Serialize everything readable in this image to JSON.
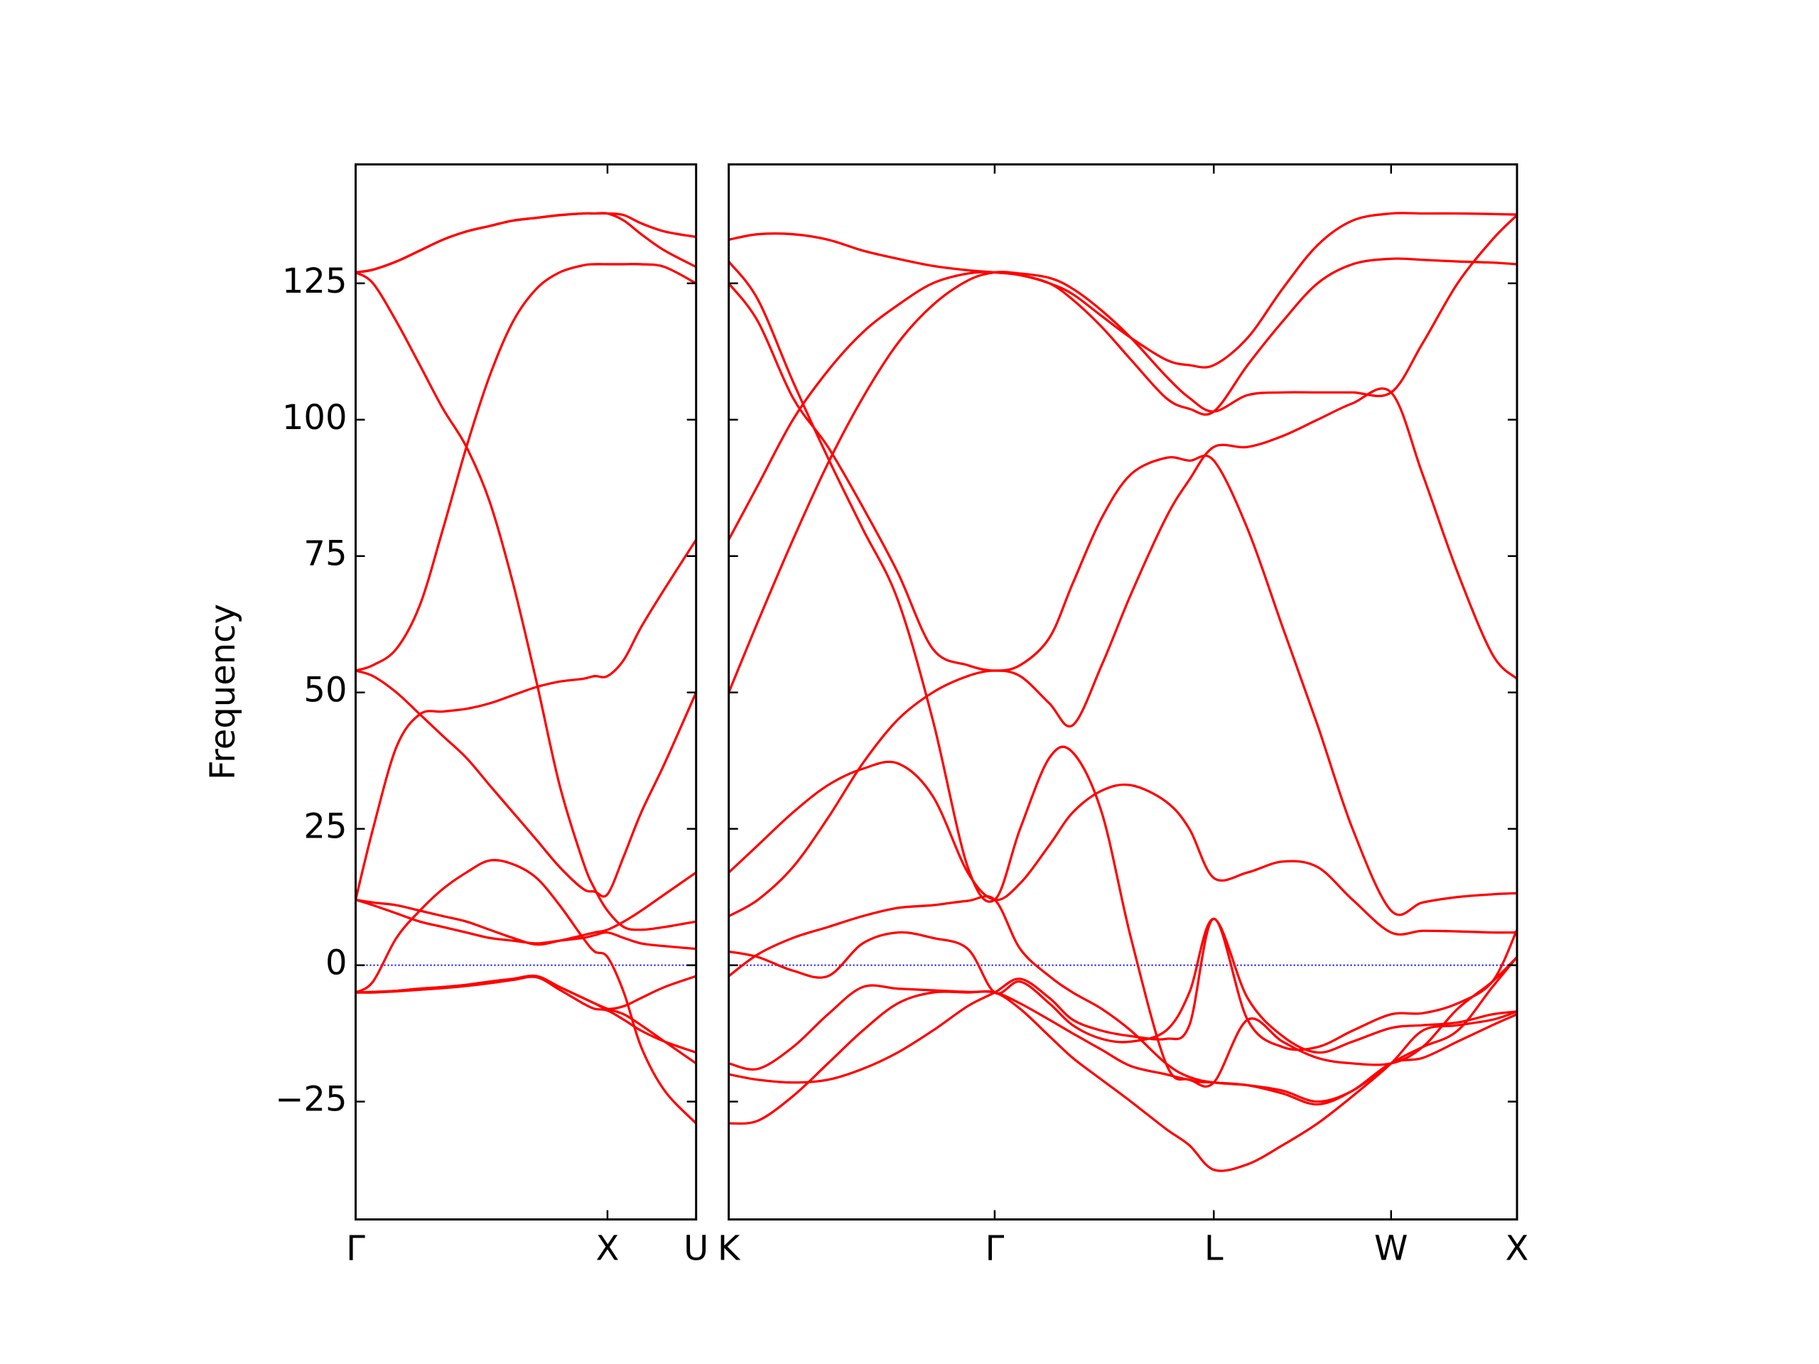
{
  "chart_data": [
    {
      "type": "line",
      "ylabel": "Frequency",
      "color": "#ff0000",
      "hline": {
        "value": 0,
        "color": "#0000ff"
      },
      "xlim": [
        0,
        1.352
      ],
      "xticks": [
        {
          "value": 0,
          "label": "Γ"
        },
        {
          "value": 1,
          "label": "X"
        },
        {
          "value": 1.352,
          "label": "U"
        }
      ],
      "ylim": [
        -46.6,
        146.8
      ],
      "yticks": [
        {
          "value": -25,
          "label": "−25"
        },
        0,
        25,
        50,
        75,
        100,
        125
      ],
      "ytick_labels": true,
      "x": [
        0,
        0.069,
        0.162,
        0.255,
        0.347,
        0.44,
        0.532,
        0.625,
        0.718,
        0.81,
        0.903,
        0.949,
        1.0,
        1.065,
        1.134,
        1.227,
        1.352
      ],
      "series": [
        {
          "values": [
            127,
            127.5,
            129,
            131,
            133,
            134.5,
            135.5,
            136.5,
            137,
            137.5,
            137.8,
            137.8,
            137.8,
            137.5,
            136,
            134.5,
            133.5
          ]
        },
        {
          "values": [
            127,
            127.5,
            129,
            131,
            133,
            134.5,
            135.5,
            136.5,
            137,
            137.5,
            137.8,
            137.8,
            137.8,
            136.5,
            134,
            131,
            128
          ]
        },
        {
          "values": [
            127,
            125,
            118,
            110,
            102,
            95,
            85,
            70,
            52,
            33,
            19,
            14,
            10,
            7,
            6.5,
            7,
            8
          ]
        },
        {
          "values": [
            54,
            55,
            58,
            66,
            80,
            95,
            108,
            118,
            124,
            127,
            128.3,
            128.5,
            128.5,
            128.5,
            128.5,
            128,
            125
          ]
        },
        {
          "values": [
            54,
            53,
            50,
            46,
            42,
            38,
            33,
            28,
            23,
            18,
            14,
            13.5,
            13,
            20,
            28,
            37,
            50
          ]
        },
        {
          "values": [
            12,
            25,
            40,
            46,
            46.5,
            47,
            48,
            49.5,
            51,
            52,
            52.5,
            53,
            53,
            56,
            62,
            69,
            78
          ]
        },
        {
          "values": [
            12,
            11.5,
            11,
            10,
            9,
            8,
            6.5,
            5,
            3.8,
            4.5,
            5.5,
            6,
            6.5,
            8,
            10,
            13,
            17
          ]
        },
        {
          "values": [
            -5,
            -3,
            5,
            10,
            14,
            17,
            19.2,
            18.5,
            16,
            11,
            5,
            2.5,
            1.5,
            -5,
            -15,
            -23,
            -29
          ]
        },
        {
          "values": [
            -5,
            -4.9,
            -4.7,
            -4.3,
            -4,
            -3.6,
            -3,
            -2.5,
            -2,
            -4,
            -6,
            -7,
            -8,
            -9,
            -11,
            -14,
            -18
          ]
        },
        {
          "values": [
            -5,
            -4.9,
            -4.7,
            -4.3,
            -4,
            -3.6,
            -3,
            -2.5,
            -2,
            -4,
            -6,
            -7,
            -8,
            -7.5,
            -6,
            -4,
            -2
          ]
        },
        {
          "values": [
            12,
            11,
            9.5,
            8,
            7,
            6,
            5,
            4.5,
            4,
            4.5,
            5,
            5.5,
            6,
            5,
            4,
            3.5,
            3
          ]
        },
        {
          "values": [
            -5,
            -5,
            -4.8,
            -4.5,
            -4.2,
            -3.8,
            -3.3,
            -2.7,
            -2.2,
            -4.5,
            -7,
            -8,
            -8.3,
            -10,
            -12,
            -14,
            -16
          ]
        }
      ]
    },
    {
      "type": "line",
      "color": "#ff0000",
      "hline": {
        "value": 0,
        "color": "#0000ff"
      },
      "xlim": [
        0,
        3.13
      ],
      "xticks": [
        {
          "value": 0,
          "label": "K"
        },
        {
          "value": 1.056,
          "label": "Γ"
        },
        {
          "value": 1.926,
          "label": "L"
        },
        {
          "value": 2.63,
          "label": "W"
        },
        {
          "value": 3.13,
          "label": "X"
        }
      ],
      "ylim": [
        -46.6,
        146.8
      ],
      "yticks": [
        -25,
        0,
        25,
        50,
        75,
        100,
        125
      ],
      "ytick_labels": false,
      "x": [
        0,
        0.116,
        0.255,
        0.394,
        0.532,
        0.671,
        0.81,
        0.949,
        1.056,
        1.157,
        1.273,
        1.366,
        1.481,
        1.597,
        1.736,
        1.829,
        1.926,
        2.06,
        2.199,
        2.338,
        2.477,
        2.63,
        2.755,
        2.894,
        3.032,
        3.13
      ],
      "series": [
        {
          "values": [
            133,
            134,
            134,
            133,
            131,
            129.5,
            128.2,
            127.4,
            127,
            126.5,
            125,
            123,
            119,
            115,
            111,
            110,
            110,
            115,
            124,
            132,
            136.5,
            137.8,
            137.8,
            137.8,
            137.7,
            137.6
          ]
        },
        {
          "values": [
            129,
            122,
            107,
            93,
            80,
            67,
            45,
            18,
            12,
            25,
            38,
            39,
            28,
            5,
            -18,
            -21,
            -21.5,
            -22,
            -23.5,
            -25.5,
            -23,
            -18,
            -17,
            -14,
            -11,
            -9
          ]
        },
        {
          "values": [
            125,
            118,
            104,
            95,
            84,
            72,
            58,
            55,
            54,
            55,
            60,
            70,
            82,
            90,
            93,
            92.5,
            92.5,
            80,
            62,
            44,
            25,
            10,
            11.5,
            12.5,
            13,
            13.2
          ]
        },
        {
          "values": [
            78,
            88,
            100,
            109,
            116,
            121,
            125,
            126.8,
            127,
            126.5,
            125,
            122,
            117,
            111,
            104,
            102,
            101.5,
            110,
            118,
            125,
            128.5,
            129.5,
            129.3,
            129,
            128.8,
            128.5
          ]
        },
        {
          "values": [
            50,
            63,
            78,
            92,
            104,
            114,
            121,
            125.5,
            127,
            126.8,
            126,
            124,
            120,
            115,
            108,
            104,
            101.5,
            104.5,
            105,
            105,
            105,
            105,
            114,
            125,
            133,
            137.5
          ]
        },
        {
          "values": [
            17,
            22,
            28,
            33,
            36,
            37,
            31,
            17,
            12,
            15,
            22,
            28,
            32,
            33,
            30,
            25,
            16,
            17,
            19,
            18,
            12,
            6,
            6.3,
            6.2,
            6,
            6
          ]
        },
        {
          "values": [
            9,
            12,
            18,
            27,
            37,
            45,
            50,
            53,
            54,
            53,
            48,
            44,
            55,
            68,
            82,
            89,
            95,
            95,
            97,
            100,
            103,
            105,
            90,
            72,
            57,
            52.5
          ]
        },
        {
          "values": [
            2.5,
            1.5,
            -1,
            -2,
            4,
            6,
            5,
            3,
            -5,
            -3,
            -7,
            -11,
            -13.5,
            -14,
            -12,
            -5,
            8.5,
            -6,
            -13,
            -16,
            -14,
            -11.5,
            -11,
            -10.5,
            -9,
            -8.5
          ]
        },
        {
          "values": [
            -2,
            2,
            5,
            7,
            9,
            10.5,
            11,
            11.8,
            12,
            3,
            -2,
            -5,
            -8,
            -12,
            -18,
            -20.5,
            -21.5,
            -22,
            -23,
            -25,
            -23,
            -18,
            -15,
            -12,
            -4,
            1.5
          ]
        },
        {
          "values": [
            -18,
            -19,
            -15,
            -9,
            -4,
            -4.3,
            -4.6,
            -4.9,
            -5,
            -7,
            -10,
            -12.5,
            -15.5,
            -18.5,
            -20,
            -21,
            -21.5,
            -10,
            -14,
            -17,
            -18,
            -18,
            -15,
            -8,
            -3,
            1.5
          ]
        },
        {
          "values": [
            -20,
            -21,
            -21.5,
            -21,
            -19,
            -16,
            -12,
            -7.5,
            -5,
            -2.5,
            -6,
            -10,
            -12,
            -13,
            -13.5,
            -11,
            8.5,
            -10,
            -15,
            -15,
            -12,
            -9,
            -8.8,
            -7,
            -3,
            6.5
          ]
        },
        {
          "values": [
            -29,
            -28.5,
            -24,
            -18,
            -12,
            -7,
            -5,
            -5,
            -5,
            -8,
            -13,
            -17,
            -21,
            -25,
            -30,
            -33,
            -37.5,
            -36.5,
            -33,
            -29,
            -24,
            -18,
            -12,
            -11,
            -10,
            -8.5
          ]
        }
      ]
    }
  ]
}
